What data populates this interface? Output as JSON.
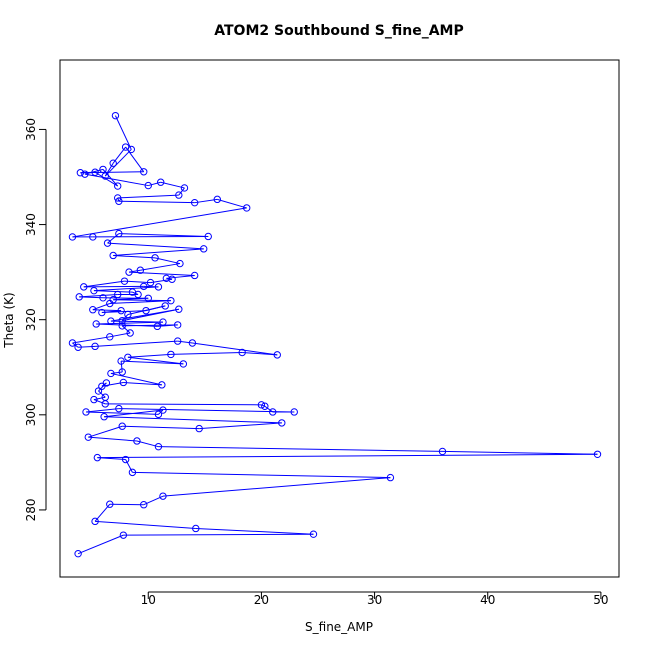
{
  "chart_data": {
    "type": "line",
    "title": "ATOM2 Southbound S_fine_AMP",
    "xlabel": "S_fine_AMP",
    "ylabel": "Theta (K)",
    "xlim": [
      2.2,
      51.6
    ],
    "ylim": [
      265.9,
      374.6
    ],
    "x_ticks": [
      10,
      20,
      30,
      40,
      50
    ],
    "y_ticks": [
      280,
      300,
      320,
      340,
      360
    ],
    "series": [
      {
        "color": "#0000ff",
        "markers": "open-circle",
        "lines": true,
        "points": [
          [
            7.1,
            362.9
          ],
          [
            8.5,
            355.8
          ],
          [
            6.2,
            350.2
          ],
          [
            6.9,
            352.9
          ],
          [
            8.0,
            356.3
          ],
          [
            9.6,
            351.1
          ],
          [
            4.0,
            350.9
          ],
          [
            5.3,
            351.0
          ],
          [
            7.3,
            348.1
          ],
          [
            6.0,
            351.6
          ],
          [
            4.4,
            350.6
          ],
          [
            10.0,
            348.2
          ],
          [
            11.1,
            348.9
          ],
          [
            13.2,
            347.7
          ],
          [
            12.7,
            346.2
          ],
          [
            7.3,
            345.6
          ],
          [
            7.4,
            344.9
          ],
          [
            14.1,
            344.6
          ],
          [
            16.1,
            345.3
          ],
          [
            18.7,
            343.5
          ],
          [
            3.3,
            337.4
          ],
          [
            5.1,
            337.4
          ],
          [
            15.3,
            337.5
          ],
          [
            7.4,
            338.1
          ],
          [
            6.4,
            336.1
          ],
          [
            14.9,
            334.9
          ],
          [
            6.9,
            333.5
          ],
          [
            10.6,
            333.0
          ],
          [
            12.8,
            331.8
          ],
          [
            9.3,
            330.4
          ],
          [
            8.3,
            330.0
          ],
          [
            14.1,
            329.3
          ],
          [
            11.6,
            328.7
          ],
          [
            12.1,
            328.5
          ],
          [
            10.2,
            327.8
          ],
          [
            7.9,
            328.1
          ],
          [
            4.3,
            326.9
          ],
          [
            9.6,
            327.0
          ],
          [
            10.9,
            326.9
          ],
          [
            5.2,
            326.1
          ],
          [
            8.6,
            325.8
          ],
          [
            9.1,
            325.3
          ],
          [
            7.3,
            325.3
          ],
          [
            3.9,
            324.8
          ],
          [
            6.0,
            324.6
          ],
          [
            10.0,
            324.5
          ],
          [
            6.9,
            324.2
          ],
          [
            12.0,
            324.0
          ],
          [
            6.6,
            323.4
          ],
          [
            5.1,
            322.1
          ],
          [
            7.6,
            321.9
          ],
          [
            5.9,
            321.5
          ],
          [
            9.8,
            321.9
          ],
          [
            11.5,
            322.9
          ],
          [
            8.2,
            321.1
          ],
          [
            7.7,
            319.8
          ],
          [
            12.7,
            322.2
          ],
          [
            6.7,
            319.7
          ],
          [
            11.3,
            319.5
          ],
          [
            5.4,
            319.1
          ],
          [
            10.8,
            318.6
          ],
          [
            12.6,
            318.9
          ],
          [
            7.7,
            318.7
          ],
          [
            8.4,
            317.2
          ],
          [
            6.6,
            316.4
          ],
          [
            3.3,
            315.1
          ],
          [
            3.8,
            314.2
          ],
          [
            5.3,
            314.4
          ],
          [
            12.6,
            315.5
          ],
          [
            13.9,
            315.1
          ],
          [
            21.4,
            312.6
          ],
          [
            18.3,
            313.1
          ],
          [
            12.0,
            312.7
          ],
          [
            8.2,
            312.1
          ],
          [
            13.1,
            310.7
          ],
          [
            7.6,
            311.3
          ],
          [
            7.7,
            309.0
          ],
          [
            6.7,
            308.7
          ],
          [
            11.2,
            306.3
          ],
          [
            7.8,
            306.8
          ],
          [
            5.9,
            306.0
          ],
          [
            6.3,
            306.7
          ],
          [
            5.6,
            305.0
          ],
          [
            6.2,
            303.7
          ],
          [
            5.2,
            303.2
          ],
          [
            6.2,
            302.3
          ],
          [
            20.0,
            302.1
          ],
          [
            20.3,
            301.8
          ],
          [
            21.0,
            300.6
          ],
          [
            22.9,
            300.6
          ],
          [
            7.4,
            301.3
          ],
          [
            4.5,
            300.6
          ],
          [
            10.9,
            300.1
          ],
          [
            11.3,
            301.0
          ],
          [
            6.1,
            299.6
          ],
          [
            21.8,
            298.3
          ],
          [
            14.5,
            297.1
          ],
          [
            7.7,
            297.6
          ],
          [
            4.7,
            295.3
          ],
          [
            9.0,
            294.5
          ],
          [
            10.9,
            293.3
          ],
          [
            36.0,
            292.3
          ],
          [
            49.7,
            291.7
          ],
          [
            5.5,
            291.0
          ],
          [
            8.0,
            290.6
          ],
          [
            8.6,
            287.9
          ],
          [
            31.4,
            286.8
          ],
          [
            11.3,
            282.9
          ],
          [
            9.6,
            281.1
          ],
          [
            6.6,
            281.2
          ],
          [
            5.3,
            277.6
          ],
          [
            14.2,
            276.1
          ],
          [
            24.6,
            274.9
          ],
          [
            7.8,
            274.7
          ],
          [
            3.8,
            270.8
          ]
        ]
      }
    ]
  }
}
